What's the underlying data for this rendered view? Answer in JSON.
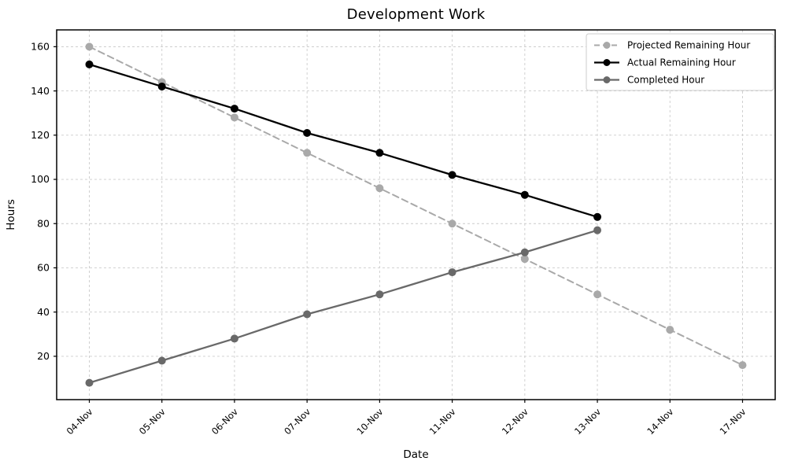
{
  "chart_data": {
    "type": "line",
    "title": "Development Work",
    "xlabel": "Date",
    "ylabel": "Hours",
    "categories": [
      "04-Nov",
      "05-Nov",
      "06-Nov",
      "07-Nov",
      "10-Nov",
      "11-Nov",
      "12-Nov",
      "13-Nov",
      "14-Nov",
      "17-Nov"
    ],
    "yticks": [
      20,
      40,
      60,
      80,
      100,
      120,
      140,
      160
    ],
    "ylim": [
      0.4,
      167.6
    ],
    "grid": true,
    "grid_style": "dashed",
    "legend_position": "upper right",
    "colors": {
      "projected": "#a9a9a9",
      "actual": "#000000",
      "completed": "#696969",
      "grid": "#cccccc",
      "spine": "#000000",
      "legend_border": "#cccccc"
    },
    "series": [
      {
        "name": "Projected Remaining Hour",
        "color": "#a9a9a9",
        "line_style": "dashed",
        "marker": "circle",
        "values": [
          160,
          144,
          128,
          112,
          96,
          80,
          64,
          48,
          32,
          16
        ]
      },
      {
        "name": "Actual Remaining Hour",
        "color": "#000000",
        "line_style": "solid",
        "marker": "circle",
        "values": [
          152,
          142,
          132,
          121,
          112,
          102,
          93,
          83
        ]
      },
      {
        "name": "Completed Hour",
        "color": "#696969",
        "line_style": "solid",
        "marker": "circle",
        "values": [
          8,
          18,
          28,
          39,
          48,
          58,
          67,
          77
        ]
      }
    ]
  }
}
